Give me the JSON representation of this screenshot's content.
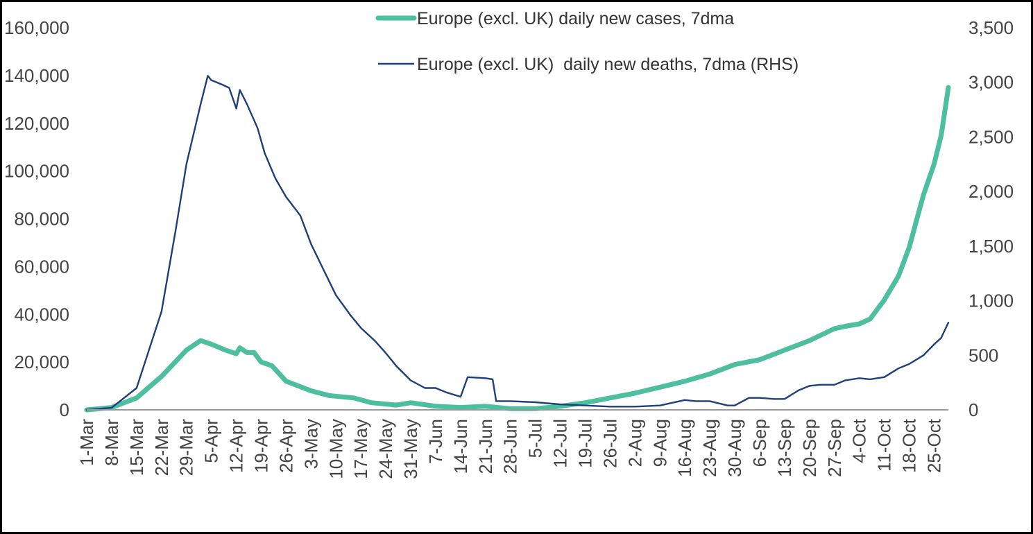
{
  "chart_data": {
    "type": "line",
    "title": "",
    "xlabel": "",
    "ylabel": "",
    "y2label": "",
    "x_start": "1-Mar",
    "x_step_days": 1,
    "x_ticks": [
      "1-Mar",
      "8-Mar",
      "15-Mar",
      "22-Mar",
      "29-Mar",
      "5-Apr",
      "12-Apr",
      "19-Apr",
      "26-Apr",
      "3-May",
      "10-May",
      "17-May",
      "24-May",
      "31-May",
      "7-Jun",
      "14-Jun",
      "21-Jun",
      "28-Jun",
      "5-Jul",
      "12-Jul",
      "19-Jul",
      "26-Jul",
      "2-Aug",
      "9-Aug",
      "16-Aug",
      "23-Aug",
      "30-Aug",
      "6-Sep",
      "13-Sep",
      "20-Sep",
      "27-Sep",
      "4-Oct",
      "11-Oct",
      "18-Oct",
      "25-Oct"
    ],
    "y_ticks": [
      "0",
      "20,000",
      "40,000",
      "60,000",
      "80,000",
      "100,000",
      "120,000",
      "140,000",
      "160,000"
    ],
    "y2_ticks": [
      "0",
      "500",
      "1,000",
      "1,500",
      "2,000",
      "2,500",
      "3,000",
      "3,500"
    ],
    "ylim": [
      0,
      160000
    ],
    "y2lim": [
      0,
      3500
    ],
    "legend_position": "top-center",
    "series": [
      {
        "name": "Europe (excl. UK) daily new cases, 7dma",
        "axis": "left",
        "color": "#4dbf9e",
        "points": [
          [
            "1-Mar",
            0
          ],
          [
            "8-Mar",
            1000
          ],
          [
            "15-Mar",
            5000
          ],
          [
            "22-Mar",
            14000
          ],
          [
            "29-Mar",
            25000
          ],
          [
            "2-Apr",
            29000
          ],
          [
            "5-Apr",
            27500
          ],
          [
            "9-Apr",
            25000
          ],
          [
            "12-Apr",
            23500
          ],
          [
            "13-Apr",
            26000
          ],
          [
            "15-Apr",
            24000
          ],
          [
            "17-Apr",
            24000
          ],
          [
            "19-Apr",
            20000
          ],
          [
            "22-Apr",
            18500
          ],
          [
            "26-Apr",
            12000
          ],
          [
            "3-May",
            8000
          ],
          [
            "8-May",
            6000
          ],
          [
            "15-May",
            5000
          ],
          [
            "20-May",
            3000
          ],
          [
            "27-May",
            2000
          ],
          [
            "31-May",
            3000
          ],
          [
            "7-Jun",
            1500
          ],
          [
            "14-Jun",
            1000
          ],
          [
            "21-Jun",
            1500
          ],
          [
            "28-Jun",
            500
          ],
          [
            "5-Jul",
            500
          ],
          [
            "12-Jul",
            1500
          ],
          [
            "19-Jul",
            3000
          ],
          [
            "26-Jul",
            5000
          ],
          [
            "2-Aug",
            7000
          ],
          [
            "9-Aug",
            9500
          ],
          [
            "16-Aug",
            12000
          ],
          [
            "23-Aug",
            15000
          ],
          [
            "30-Aug",
            19000
          ],
          [
            "6-Sep",
            21000
          ],
          [
            "13-Sep",
            25000
          ],
          [
            "20-Sep",
            29000
          ],
          [
            "27-Sep",
            34000
          ],
          [
            "30-Sep",
            35000
          ],
          [
            "4-Oct",
            36000
          ],
          [
            "7-Oct",
            38000
          ],
          [
            "11-Oct",
            46000
          ],
          [
            "15-Oct",
            56000
          ],
          [
            "18-Oct",
            68000
          ],
          [
            "22-Oct",
            90000
          ],
          [
            "25-Oct",
            103000
          ],
          [
            "27-Oct",
            115000
          ],
          [
            "29-Oct",
            135000
          ]
        ]
      },
      {
        "name": "Europe (excl. UK)  daily new deaths, 7dma (RHS)",
        "axis": "right",
        "color": "#1f3f7a",
        "points": [
          [
            "1-Mar",
            0
          ],
          [
            "8-Mar",
            20
          ],
          [
            "15-Mar",
            200
          ],
          [
            "22-Mar",
            900
          ],
          [
            "26-Mar",
            1650
          ],
          [
            "29-Mar",
            2250
          ],
          [
            "2-Apr",
            2800
          ],
          [
            "4-Apr",
            3060
          ],
          [
            "5-Apr",
            3020
          ],
          [
            "8-Apr",
            2980
          ],
          [
            "10-Apr",
            2950
          ],
          [
            "12-Apr",
            2760
          ],
          [
            "13-Apr",
            2930
          ],
          [
            "15-Apr",
            2800
          ],
          [
            "18-Apr",
            2580
          ],
          [
            "20-Apr",
            2350
          ],
          [
            "23-Apr",
            2120
          ],
          [
            "26-Apr",
            1950
          ],
          [
            "30-Apr",
            1780
          ],
          [
            "3-May",
            1520
          ],
          [
            "7-May",
            1250
          ],
          [
            "10-May",
            1050
          ],
          [
            "14-May",
            870
          ],
          [
            "17-May",
            750
          ],
          [
            "21-May",
            630
          ],
          [
            "24-May",
            520
          ],
          [
            "27-May",
            400
          ],
          [
            "31-May",
            270
          ],
          [
            "4-Jun",
            200
          ],
          [
            "7-Jun",
            200
          ],
          [
            "10-Jun",
            160
          ],
          [
            "14-Jun",
            120
          ],
          [
            "16-Jun",
            300
          ],
          [
            "21-Jun",
            290
          ],
          [
            "23-Jun",
            280
          ],
          [
            "24-Jun",
            80
          ],
          [
            "28-Jun",
            80
          ],
          [
            "5-Jul",
            70
          ],
          [
            "12-Jul",
            50
          ],
          [
            "19-Jul",
            40
          ],
          [
            "26-Jul",
            30
          ],
          [
            "2-Aug",
            30
          ],
          [
            "9-Aug",
            40
          ],
          [
            "16-Aug",
            90
          ],
          [
            "19-Aug",
            80
          ],
          [
            "23-Aug",
            80
          ],
          [
            "28-Aug",
            40
          ],
          [
            "30-Aug",
            40
          ],
          [
            "3-Sep",
            110
          ],
          [
            "6-Sep",
            110
          ],
          [
            "10-Sep",
            100
          ],
          [
            "13-Sep",
            100
          ],
          [
            "17-Sep",
            180
          ],
          [
            "20-Sep",
            220
          ],
          [
            "23-Sep",
            230
          ],
          [
            "27-Sep",
            230
          ],
          [
            "30-Sep",
            270
          ],
          [
            "4-Oct",
            290
          ],
          [
            "7-Oct",
            280
          ],
          [
            "11-Oct",
            300
          ],
          [
            "15-Oct",
            380
          ],
          [
            "18-Oct",
            420
          ],
          [
            "22-Oct",
            500
          ],
          [
            "25-Oct",
            600
          ],
          [
            "27-Oct",
            660
          ],
          [
            "29-Oct",
            800
          ]
        ]
      }
    ]
  }
}
